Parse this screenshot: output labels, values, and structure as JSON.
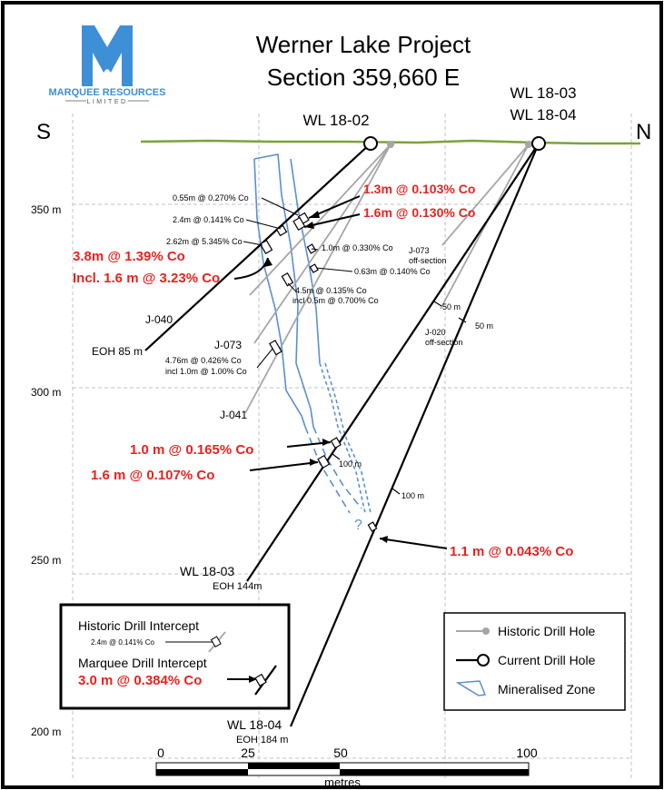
{
  "logo": {
    "name": "MARQUEE RESOURCES",
    "sub": "LIMITED"
  },
  "title": {
    "line1": "Werner Lake Project",
    "line2": "Section 359,660 E"
  },
  "direction": {
    "south": "S",
    "north": "N"
  },
  "collars": {
    "wl1802": "WL 18-02",
    "wl1803": "WL 18-03",
    "wl1804": "WL 18-04"
  },
  "elevations": [
    "350 m",
    "300 m",
    "250 m",
    "200 m"
  ],
  "scale": {
    "ticks": [
      "0",
      "25",
      "50",
      "100"
    ],
    "unit": "metres"
  },
  "historic_intercepts": [
    "0.55m @ 0.270% Co",
    "2.4m @ 0.141% Co",
    "2.62m @ 5.345% Co",
    "1.0m @ 0.330% Co",
    "0.63m @ 0.140% Co",
    "4.5m @ 0.135% Co",
    "incl 0.5m @ 0.700% Co",
    "4.76m @ 0.426% Co",
    "incl 1.0m @ 1.00% Co"
  ],
  "marquee_intercepts": [
    "1.3m @ 0.103% Co",
    "1.6m @ 0.130% Co",
    "3.8m @ 1.39% Co",
    "Incl. 1.6 m @ 3.23% Co",
    "1.0 m @ 0.165% Co",
    "1.6 m @ 0.107% Co",
    "1.1 m @ 0.043% Co"
  ],
  "hole_labels": {
    "j040": "J-040",
    "j073": "J-073",
    "j041": "J-041",
    "j073_off": "J-073",
    "j073_off_sub": "off-section",
    "j020_off": "J-020",
    "j020_off_sub": "off-section",
    "eoh_1802": "EOH 85 m",
    "wl1803_bottom": "WL 18-03",
    "eoh_1803": "EOH 144m",
    "wl1804_bottom": "WL 18-04",
    "eoh_1804": "EOH 184 m"
  },
  "depth_marks": {
    "m50": "50 m",
    "m100": "100 m"
  },
  "mineral_question": "?",
  "example_box": {
    "historic_title": "Historic Drill Intercept",
    "historic_example": "2.4m @ 0.141% Co",
    "marquee_title": "Marquee Drill Intercept",
    "marquee_example": "3.0 m @ 0.384% Co"
  },
  "legend": {
    "historic": "Historic Drill Hole",
    "current": "Current Drill Hole",
    "zone": "Mineralised Zone"
  },
  "colors": {
    "ground": "#7aa33a",
    "zone": "#5b8fd0",
    "historic": "#a6a6a6",
    "current": "#000000",
    "marquee_text": "#e8231f",
    "logo": "#3d8fd6",
    "grid": "#bfbfbf"
  }
}
